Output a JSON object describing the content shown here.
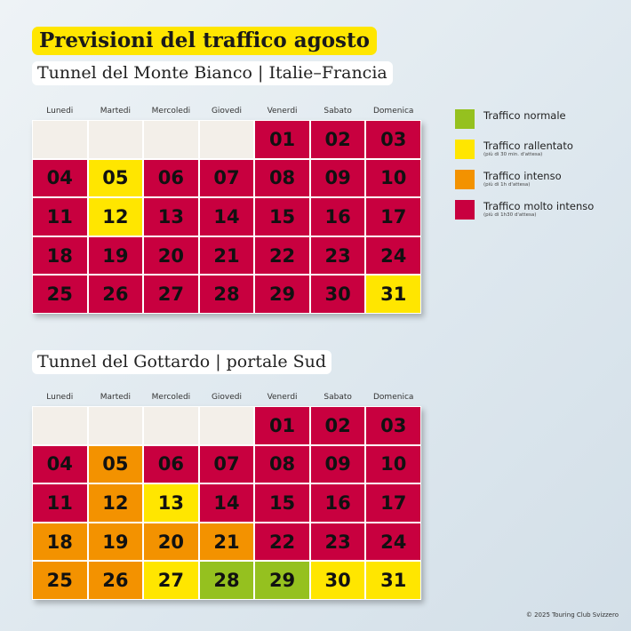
{
  "title": "Previsioni del traffico agosto",
  "colors": {
    "red": "#c8003f",
    "yellow": "#ffe600",
    "orange": "#f39200",
    "green": "#95c11f",
    "empty": "#f3efe9"
  },
  "weekdays": [
    "Lunedi",
    "Martedi",
    "Mercoledi",
    "Giovedi",
    "Venerdi",
    "Sabato",
    "Domenica"
  ],
  "calendars": [
    {
      "subtitle": "Tunnel del Monte Bianco | Italie–Francia",
      "first_weekday_offset": 4,
      "status": [
        "red",
        "red",
        "red",
        "red",
        "yellow",
        "red",
        "red",
        "red",
        "red",
        "red",
        "red",
        "yellow",
        "red",
        "red",
        "red",
        "red",
        "red",
        "red",
        "red",
        "red",
        "red",
        "red",
        "red",
        "red",
        "red",
        "red",
        "red",
        "red",
        "red",
        "red",
        "yellow"
      ]
    },
    {
      "subtitle": "Tunnel del Gottardo | portale Sud",
      "first_weekday_offset": 4,
      "status": [
        "red",
        "red",
        "red",
        "red",
        "orange",
        "red",
        "red",
        "red",
        "red",
        "red",
        "red",
        "orange",
        "yellow",
        "red",
        "red",
        "red",
        "red",
        "orange",
        "orange",
        "orange",
        "orange",
        "red",
        "red",
        "red",
        "orange",
        "orange",
        "yellow",
        "green",
        "green",
        "yellow",
        "yellow"
      ]
    }
  ],
  "legend": [
    {
      "label": "Traffico normale",
      "note": "",
      "color": "green"
    },
    {
      "label": "Traffico rallentato",
      "note": "(più di 30 min. d'attesa)",
      "color": "yellow"
    },
    {
      "label": "Traffico intenso",
      "note": "(più di 1h d'attesa)",
      "color": "orange"
    },
    {
      "label": "Traffico molto intenso",
      "note": "(più di 1h30 d'attesa)",
      "color": "red"
    }
  ],
  "copyright": "© 2025 Touring Club Svizzero"
}
